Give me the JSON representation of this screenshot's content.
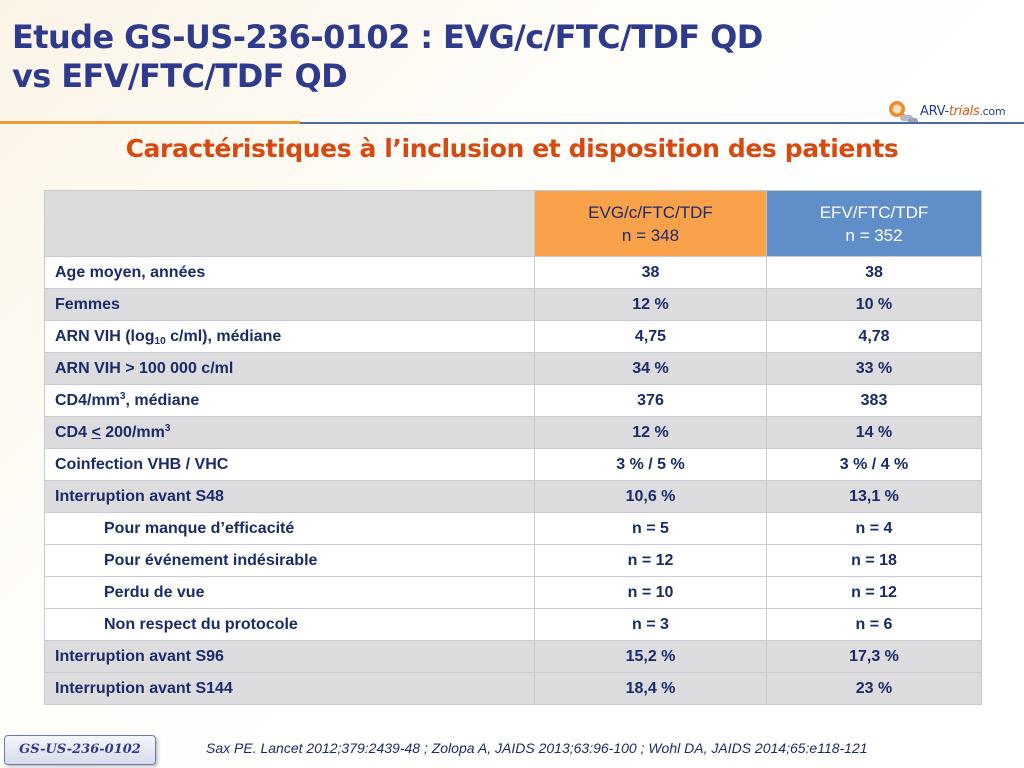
{
  "slide": {
    "title_line1": "Etude GS-US-236-0102 : EVG/c/FTC/TDF QD",
    "title_line2": "vs EFV/FTC/TDF QD",
    "subtitle": "Caractéristiques à l’inclusion et disposition des patients",
    "logo": {
      "icon": "arv-trials-logo-icon",
      "part1": "ARV-",
      "part2": "trials",
      "part3": ".com"
    }
  },
  "colors": {
    "title": "#2e3a8c",
    "accent_orange": "#f09a35",
    "evg_header": "#f9a24a",
    "efv_header": "#5f8ec9",
    "subtitle": "#d9480f"
  },
  "table": {
    "header": {
      "evg_name": "EVG/c/FTC/TDF",
      "evg_n": "n = 348",
      "efv_name": "EFV/FTC/TDF",
      "efv_n": "n = 352"
    },
    "rows": [
      {
        "label": "Age moyen, années",
        "evg": "38",
        "efv": "38"
      },
      {
        "label": "Femmes",
        "evg": "12 %",
        "efv": "10 %"
      },
      {
        "label_pre": "ARN VIH (log",
        "label_sub": "10",
        "label_post": " c/ml), médiane",
        "evg": "4,75",
        "efv": "4,78"
      },
      {
        "label": "ARN VIH > 100 000 c/ml",
        "evg": "34 %",
        "efv": "33 %"
      },
      {
        "label_pre": "CD4/mm",
        "label_sup": "3",
        "label_post": ", médiane",
        "evg": "376",
        "efv": "383"
      },
      {
        "label_pre": "CD4 ",
        "label_ul": "<",
        "label_mid": " 200/mm",
        "label_sup": "3",
        "evg": "12 %",
        "efv": "14 %"
      },
      {
        "label": "Coinfection VHB / VHC",
        "evg": "3 % / 5 %",
        "efv": "3 % / 4 %"
      },
      {
        "label": "Interruption avant S48",
        "evg": "10,6 %",
        "efv": "13,1 %"
      },
      {
        "label": "Pour manque d’efficacité",
        "evg": "n = 5",
        "efv": "n = 4"
      },
      {
        "label": "Pour événement indésirable",
        "evg": "n = 12",
        "efv": "n = 18"
      },
      {
        "label": "Perdu de vue",
        "evg": "n = 10",
        "efv": "n = 12"
      },
      {
        "label": "Non respect du protocole",
        "evg": "n = 3",
        "efv": "n = 6"
      },
      {
        "label": "Interruption avant S96",
        "evg": "15,2 %",
        "efv": "17,3 %"
      },
      {
        "label": "Interruption avant S144",
        "evg": "18,4 %",
        "efv": "23 %"
      }
    ]
  },
  "footer": {
    "study_tag": "GS-US-236-0102",
    "citation": "Sax PE. Lancet 2012;379:2439-48 ; Zolopa A, JAIDS 2013;63:96-100 ; Wohl DA, JAIDS 2014;65:e118-121"
  }
}
